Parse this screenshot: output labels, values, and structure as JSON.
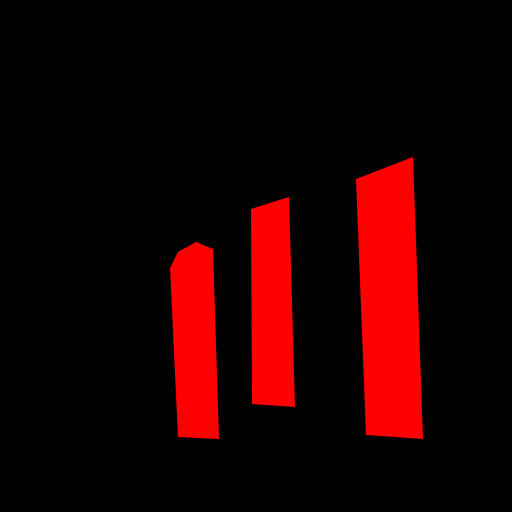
{
  "graphic": {
    "type": "three red vertical bars of increasing height on black background",
    "icon": "signal-strength-bars-icon",
    "bar_count": 3
  },
  "colors": {
    "background": "#000000",
    "bar_fill": "#ff0000"
  }
}
